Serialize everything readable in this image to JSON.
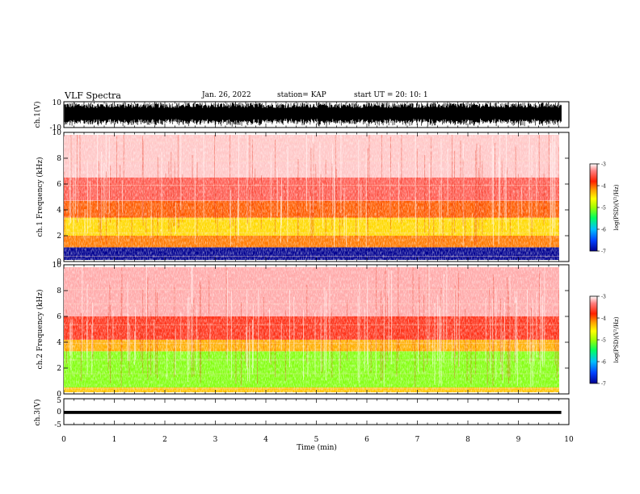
{
  "header": {
    "title": "VLF Spectra",
    "date": "Jan. 26, 2022",
    "station": "station= KAP",
    "start": "start UT =  20: 10: 1"
  },
  "colors": {
    "colormap": [
      "#000090",
      "#0040ff",
      "#00c0ff",
      "#00ff60",
      "#a0ff00",
      "#ffff00",
      "#ffa000",
      "#ff2000",
      "#ff8080",
      "#ffffff"
    ]
  },
  "chart_data": [
    {
      "type": "line",
      "panel": "ch1-waveform",
      "ylabel": "ch.1(V)",
      "ylim": [
        -10,
        10
      ],
      "yticks": [
        "10",
        "-10"
      ],
      "xlim": [
        0,
        10
      ],
      "description_values": {
        "envelope_max": 10,
        "envelope_min": -10
      }
    },
    {
      "type": "heatmap",
      "panel": "ch1-spectrogram",
      "ylabel": "ch.1 Frequency (kHz)",
      "ylim": [
        0,
        10
      ],
      "yticks": [
        "0",
        "2",
        "4",
        "6",
        "8",
        "10"
      ],
      "xlim": [
        0,
        9.85
      ],
      "bands_khz": [
        {
          "from": 0.0,
          "to": 1.1,
          "log_psd": -7
        },
        {
          "from": 1.1,
          "to": 2.0,
          "log_psd": -4.2
        },
        {
          "from": 2.0,
          "to": 3.4,
          "log_psd": -4.6
        },
        {
          "from": 3.4,
          "to": 4.7,
          "log_psd": -4.1
        },
        {
          "from": 4.7,
          "to": 6.5,
          "log_psd": -3.6
        },
        {
          "from": 6.5,
          "to": 10.0,
          "log_psd": -3.2
        }
      ],
      "colorbar": {
        "label": "log(PSD)(V²/Hz)",
        "ticks": [
          "-3",
          "-4",
          "-5",
          "-6",
          "-7"
        ],
        "range": [
          -7,
          -3
        ]
      }
    },
    {
      "type": "heatmap",
      "panel": "ch2-spectrogram",
      "ylabel": "ch.2 Frequency (kHz)",
      "ylim": [
        0,
        10
      ],
      "yticks": [
        "0",
        "2",
        "4",
        "6",
        "8",
        "10"
      ],
      "xlim": [
        0,
        9.85
      ],
      "bands_khz": [
        {
          "from": 0.0,
          "to": 0.5,
          "log_psd": -4.5
        },
        {
          "from": 0.5,
          "to": 3.3,
          "log_psd": -5.3
        },
        {
          "from": 3.3,
          "to": 4.2,
          "log_psd": -4.4
        },
        {
          "from": 4.2,
          "to": 6.0,
          "log_psd": -3.8
        },
        {
          "from": 6.0,
          "to": 10.0,
          "log_psd": -3.3
        }
      ],
      "colorbar": {
        "label": "log(PSD)(V²/Hz)",
        "ticks": [
          "-3",
          "-4",
          "-5",
          "-6",
          "-7"
        ],
        "range": [
          -7,
          -3
        ]
      }
    },
    {
      "type": "line",
      "panel": "ch3-waveform",
      "ylabel": "ch.3(V)",
      "ylim": [
        -5,
        5
      ],
      "yticks": [
        "5",
        "0",
        "-5"
      ],
      "xlim": [
        0,
        10
      ],
      "xlabel": "Time (min)",
      "xticks": [
        "0",
        "1",
        "2",
        "3",
        "4",
        "5",
        "6",
        "7",
        "8",
        "9",
        "10"
      ],
      "description_values": {
        "level": -0.3,
        "amplitude": 0.6
      }
    }
  ]
}
